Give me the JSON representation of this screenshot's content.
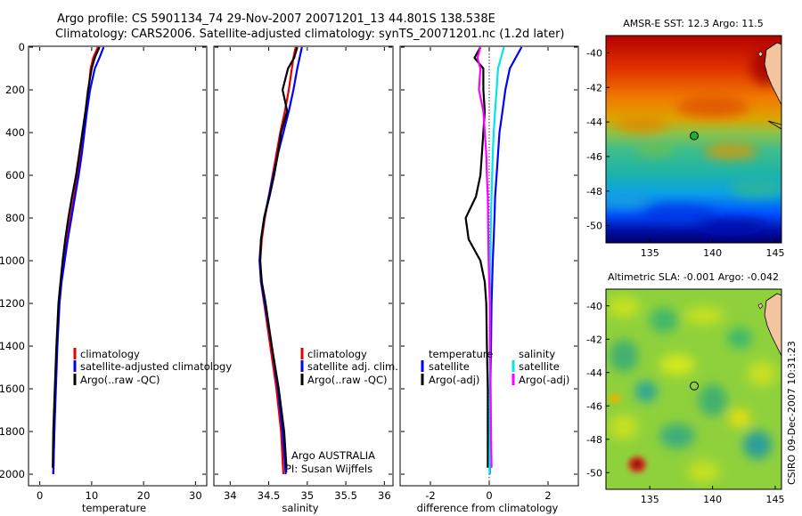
{
  "header": {
    "line1": "Argo profile: CS 5901134_74 29-Nov-2007 20071201_13 44.801S 138.538E",
    "line2": "Climatology: CARS2006. Satellite-adjusted climatology: synTS_20071201.nc (1.2d later)"
  },
  "credit": {
    "vertical": "CSIRO 09-Dec-2007 10:31:23",
    "argo_line1": "Argo AUSTRALIA",
    "argo_line2": "PI: Susan Wijffels"
  },
  "colors": {
    "climatology": "#e60000",
    "satellite": "#0000ff",
    "argo": "#000000",
    "sat_diff": "#00e5ee",
    "argo_diff": "#ff00ff",
    "land": "#f2c4a0"
  },
  "chart_data": [
    {
      "type": "line",
      "panel": "temperature",
      "xlabel": "temperature",
      "ylabel": "",
      "xlim": [
        -2,
        32
      ],
      "ylim": [
        2050,
        0
      ],
      "y_reversed": true,
      "xticks": [
        0,
        10,
        20,
        30
      ],
      "yticks": [
        0,
        200,
        400,
        600,
        800,
        1000,
        1200,
        1400,
        1600,
        1800,
        2000
      ],
      "legend": [
        "climatology",
        "satellite-adjusted climatology",
        "Argo(..raw -QC)"
      ],
      "series": [
        {
          "name": "climatology",
          "color_key": "climatology",
          "x": [
            11.2,
            10.3,
            9.8,
            9.4,
            8.9,
            8.4,
            7.9,
            7.3,
            6.6,
            5.9,
            5.2,
            4.6,
            4.1,
            3.7,
            3.3,
            3.0,
            2.8,
            2.6
          ],
          "y": [
            0,
            50,
            100,
            200,
            300,
            400,
            500,
            600,
            700,
            800,
            900,
            1000,
            1100,
            1200,
            1400,
            1600,
            1800,
            2000
          ]
        },
        {
          "name": "satellite-adjusted climatology",
          "color_key": "satellite",
          "x": [
            12.3,
            11.5,
            10.6,
            9.7,
            9.1,
            8.6,
            8.1,
            7.5,
            6.8,
            6.1,
            5.4,
            4.8,
            4.2,
            3.8,
            3.4,
            3.1,
            2.8,
            2.6
          ],
          "y": [
            0,
            50,
            100,
            200,
            300,
            400,
            500,
            600,
            700,
            800,
            900,
            1000,
            1100,
            1200,
            1400,
            1600,
            1800,
            2000
          ]
        },
        {
          "name": "Argo(..raw -QC)",
          "color_key": "argo",
          "x": [
            11.5,
            10.6,
            10.0,
            9.3,
            8.8,
            8.2,
            7.6,
            7.0,
            6.2,
            5.5,
            4.9,
            4.4,
            4.0,
            3.6,
            3.2,
            2.9,
            2.6,
            2.5
          ],
          "y": [
            0,
            50,
            100,
            200,
            300,
            400,
            500,
            600,
            700,
            800,
            900,
            1000,
            1100,
            1200,
            1400,
            1600,
            1800,
            1970
          ]
        }
      ]
    },
    {
      "type": "line",
      "panel": "salinity",
      "xlabel": "salinity",
      "ylabel": "",
      "xlim": [
        33.8,
        36.1
      ],
      "ylim": [
        2050,
        0
      ],
      "y_reversed": true,
      "xticks": [
        34,
        34.5,
        35,
        35.5,
        36
      ],
      "legend": [
        "climatology",
        "satellite adj. clim.",
        "Argo(..raw -QC)"
      ],
      "series": [
        {
          "name": "climatology",
          "color_key": "climatology",
          "x": [
            34.85,
            34.82,
            34.8,
            34.76,
            34.71,
            34.65,
            34.6,
            34.55,
            34.5,
            34.45,
            34.41,
            34.39,
            34.4,
            34.44,
            34.52,
            34.6,
            34.66,
            34.69
          ],
          "y": [
            0,
            50,
            100,
            200,
            300,
            400,
            500,
            600,
            700,
            800,
            900,
            1000,
            1100,
            1200,
            1400,
            1600,
            1800,
            2000
          ]
        },
        {
          "name": "satellite adj. clim.",
          "color_key": "satellite",
          "x": [
            34.93,
            34.9,
            34.87,
            34.82,
            34.76,
            34.69,
            34.62,
            34.56,
            34.5,
            34.44,
            34.4,
            34.38,
            34.4,
            34.45,
            34.54,
            34.62,
            34.68,
            34.72
          ],
          "y": [
            0,
            50,
            100,
            200,
            300,
            400,
            500,
            600,
            700,
            800,
            900,
            1000,
            1100,
            1200,
            1400,
            1600,
            1800,
            2000
          ]
        },
        {
          "name": "Argo(..raw -QC)",
          "color_key": "argo",
          "x": [
            34.87,
            34.83,
            34.75,
            34.68,
            34.74,
            34.66,
            34.62,
            34.57,
            34.51,
            34.44,
            34.4,
            34.39,
            34.41,
            34.46,
            34.54,
            34.63,
            34.7,
            34.73
          ],
          "y": [
            0,
            50,
            100,
            200,
            300,
            400,
            500,
            600,
            700,
            800,
            900,
            1000,
            1100,
            1200,
            1400,
            1600,
            1800,
            1970
          ]
        }
      ]
    },
    {
      "type": "line",
      "panel": "difference",
      "xlabel": "difference from climatology",
      "ylabel": "",
      "xlim": [
        -3,
        3
      ],
      "ylim": [
        2050,
        0
      ],
      "y_reversed": true,
      "xticks": [
        -2,
        0,
        2
      ],
      "legend_left_title": "temperature",
      "legend_right_title": "salinity",
      "legend_left": [
        "satellite",
        "Argo(-adj)"
      ],
      "legend_right": [
        "satellite",
        "Argo(-adj)"
      ],
      "series": [
        {
          "name": "temperature satellite",
          "color_key": "satellite",
          "x": [
            1.1,
            0.9,
            0.7,
            0.55,
            0.45,
            0.35,
            0.3,
            0.25,
            0.2,
            0.18,
            0.15,
            0.12,
            0.1,
            0.08,
            0.06,
            0.04,
            0.03,
            0.02
          ],
          "y": [
            0,
            50,
            100,
            200,
            300,
            400,
            500,
            600,
            700,
            800,
            900,
            1000,
            1100,
            1200,
            1400,
            1600,
            1800,
            2000
          ]
        },
        {
          "name": "temperature Argo(-adj)",
          "color_key": "argo",
          "x": [
            -0.3,
            -0.5,
            -0.2,
            -0.2,
            -0.15,
            -0.2,
            -0.25,
            -0.3,
            -0.45,
            -0.8,
            -0.7,
            -0.3,
            -0.15,
            -0.1,
            -0.08,
            -0.05,
            -0.05,
            -0.05
          ],
          "y": [
            0,
            50,
            100,
            200,
            300,
            400,
            500,
            600,
            700,
            800,
            900,
            1000,
            1100,
            1200,
            1400,
            1600,
            1800,
            1970
          ]
        },
        {
          "name": "salinity satellite",
          "color_key": "sat_diff",
          "x": [
            0.5,
            0.4,
            0.3,
            0.25,
            0.2,
            0.15,
            0.12,
            0.1,
            0.08,
            0.06,
            0.05,
            0.04,
            0.03,
            0.03,
            0.02,
            0.02,
            0.02,
            0.01
          ],
          "y": [
            0,
            50,
            100,
            200,
            300,
            400,
            500,
            600,
            700,
            800,
            900,
            1000,
            1100,
            1200,
            1400,
            1600,
            1800,
            2000
          ]
        },
        {
          "name": "salinity Argo(-adj)",
          "color_key": "argo_diff",
          "x": [
            -0.3,
            -0.4,
            -0.3,
            -0.35,
            -0.2,
            -0.15,
            -0.1,
            -0.08,
            -0.05,
            -0.04,
            -0.03,
            -0.02,
            0.0,
            0.02,
            0.03,
            0.05,
            0.06,
            0.08
          ],
          "y": [
            0,
            50,
            100,
            200,
            300,
            400,
            500,
            600,
            700,
            800,
            900,
            1000,
            1100,
            1200,
            1400,
            1600,
            1800,
            1970
          ]
        }
      ]
    },
    {
      "type": "heatmap",
      "panel": "sst_map",
      "title": "AMSR-E SST: 12.3  Argo: 11.5",
      "xlim": [
        131.5,
        145.5
      ],
      "ylim": [
        -51,
        -39
      ],
      "xticks": [
        135,
        140,
        145
      ],
      "yticks": [
        -40,
        -42,
        -44,
        -46,
        -48,
        -50
      ],
      "float_position": {
        "lon": 138.538,
        "lat": -44.801
      }
    },
    {
      "type": "heatmap",
      "panel": "sla_map",
      "title": "Altimetric SLA: -0.001  Argo: -0.042",
      "xlim": [
        131.5,
        145.5
      ],
      "ylim": [
        -51,
        -39
      ],
      "xticks": [
        135,
        140,
        145
      ],
      "yticks": [
        -40,
        -42,
        -44,
        -46,
        -48,
        -50
      ],
      "float_position": {
        "lon": 138.538,
        "lat": -44.801
      }
    }
  ]
}
